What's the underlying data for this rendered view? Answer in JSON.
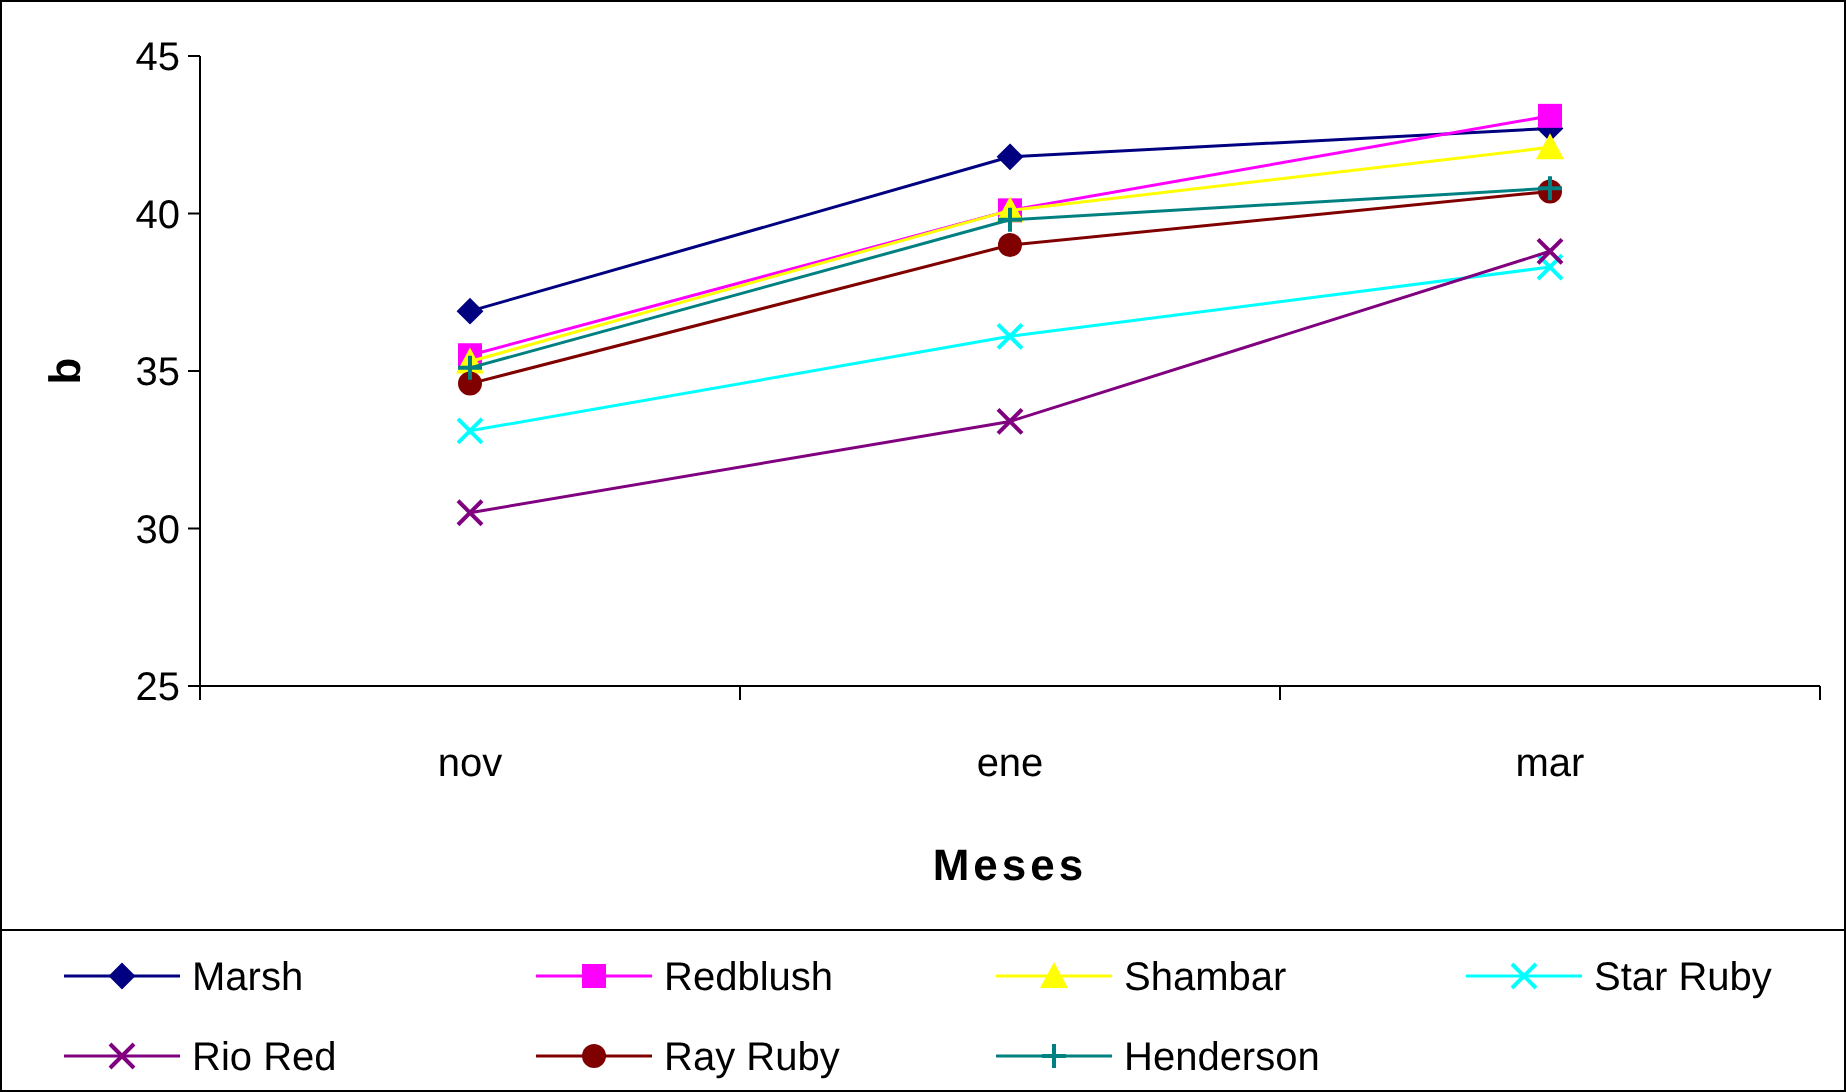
{
  "chart_data": {
    "type": "line",
    "xlabel": "Meses",
    "ylabel": "b",
    "categories": [
      "nov",
      "ene",
      "mar"
    ],
    "ylim": [
      25,
      45
    ],
    "yticks": [
      25,
      30,
      35,
      40,
      45
    ],
    "grid": false,
    "legend": "bottom",
    "series": [
      {
        "name": "Marsh",
        "color": "#000080",
        "marker": "diamond",
        "values": [
          36.9,
          41.8,
          42.7
        ]
      },
      {
        "name": "Redblush",
        "color": "#ff00ff",
        "marker": "square",
        "values": [
          35.5,
          40.1,
          43.1
        ]
      },
      {
        "name": "Shambar",
        "color": "#ffff00",
        "marker": "triangle",
        "values": [
          35.3,
          40.1,
          42.1
        ]
      },
      {
        "name": "Star Ruby",
        "color": "#00ffff",
        "marker": "cross",
        "values": [
          33.1,
          36.1,
          38.3
        ]
      },
      {
        "name": "Rio Red",
        "color": "#800080",
        "marker": "cross",
        "values": [
          30.5,
          33.4,
          38.8
        ]
      },
      {
        "name": "Ray Ruby",
        "color": "#800000",
        "marker": "circle",
        "values": [
          34.6,
          39.0,
          40.7
        ]
      },
      {
        "name": "Henderson",
        "color": "#008080",
        "marker": "plus",
        "values": [
          35.1,
          39.8,
          40.8
        ]
      }
    ]
  }
}
